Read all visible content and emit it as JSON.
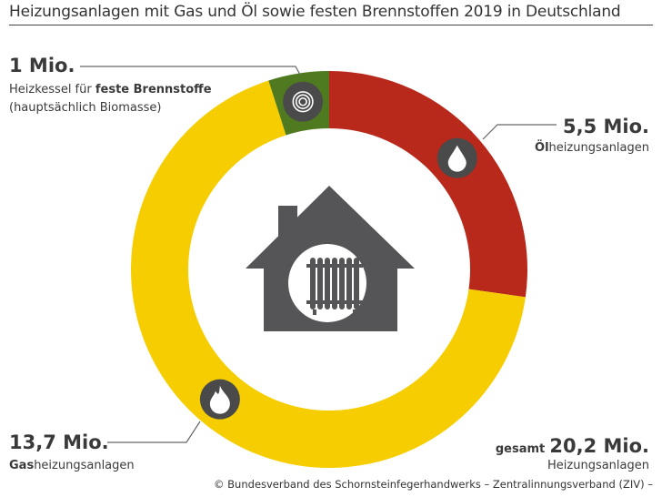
{
  "title": "Heizungsanlagen mit Gas und Öl sowie festen Brennstoffen 2019 in Deutschland",
  "chart_data": {
    "type": "pie",
    "subtype": "donut",
    "title": "Heizungsanlagen mit Gas und Öl sowie festen Brennstoffen 2019 in Deutschland",
    "unit": "Mio.",
    "slices": [
      {
        "key": "oil",
        "value_label": "5,5 Mio.",
        "label_bold": "Öl",
        "label_rest": "heizungsanlagen",
        "value": 5.5,
        "color": "#b8281b",
        "icon": "oil-drop-icon"
      },
      {
        "key": "gas",
        "value_label": "13,7 Mio.",
        "label_bold": "Gas",
        "label_rest": "heizungsanlagen",
        "value": 13.7,
        "color": "#f5cd00",
        "icon": "flame-icon"
      },
      {
        "key": "solid",
        "value_label": "1 Mio.",
        "label_prefix": "Heizkessel für ",
        "label_bold": "feste Brennstoffe",
        "label_line2": "(hauptsächlich Biomasse)",
        "value": 1.0,
        "color": "#4f7a1f",
        "icon": "wood-log-icon"
      }
    ],
    "total": {
      "prefix": "gesamt",
      "value_label": "20,2 Mio.",
      "label": "Heizungsanlagen",
      "value": 20.2
    },
    "center_icon": "house-radiator-icon"
  },
  "footer": "© Bundesverband des Schornsteinfegerhandwerks – Zentralinnungsverband (ZIV) –"
}
